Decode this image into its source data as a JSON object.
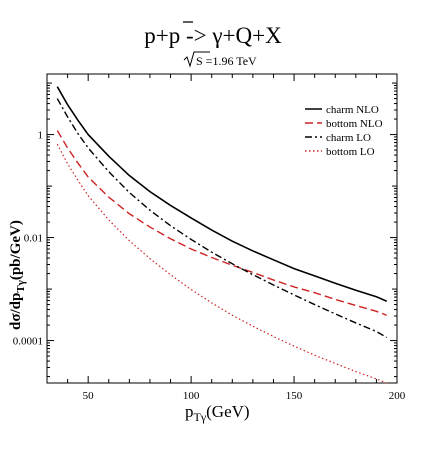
{
  "chart_data": {
    "type": "line",
    "title": "p+p -> γ+Q+X",
    "title_overbar_char": "p",
    "subtitle": "S =1.96 TeV",
    "xlabel_main": "p",
    "xlabel_sub": "Tγ",
    "xlabel_unit": "(GeV)",
    "ylabel": "dσ/dp(pb/GeV)",
    "ylabel_main": "dσ/dp",
    "ylabel_sub": "Tγ",
    "ylabel_unit": "(pb/GeV)",
    "x_scale": "linear",
    "y_scale": "log",
    "xlim": [
      30,
      200
    ],
    "ylim": [
      1.5e-05,
      15
    ],
    "x_ticks": [
      {
        "value": 50,
        "label": "50"
      },
      {
        "value": 100,
        "label": "100"
      },
      {
        "value": 150,
        "label": "150"
      },
      {
        "value": 200,
        "label": "200"
      }
    ],
    "y_ticks": [
      {
        "value": 1,
        "label": "1"
      },
      {
        "value": 0.01,
        "label": "0.01"
      },
      {
        "value": 0.0001,
        "label": "0.0001"
      }
    ],
    "grid": false,
    "legend_position": "top-right",
    "series": [
      {
        "name": "charm NLO",
        "color": "#000000",
        "dash": "solid",
        "x": [
          35,
          40,
          45,
          50,
          60,
          70,
          80,
          90,
          100,
          110,
          120,
          130,
          140,
          150,
          160,
          170,
          180,
          190,
          195
        ],
        "y": [
          8.5,
          3.8,
          1.9,
          1.0,
          0.38,
          0.16,
          0.078,
          0.042,
          0.024,
          0.014,
          0.0085,
          0.0055,
          0.0037,
          0.0025,
          0.0018,
          0.0013,
          0.00095,
          0.00071,
          0.00058
        ]
      },
      {
        "name": "bottom NLO",
        "color": "#cc2222",
        "dash": "dashed",
        "x": [
          35,
          40,
          45,
          50,
          60,
          70,
          80,
          90,
          100,
          110,
          120,
          130,
          140,
          150,
          160,
          170,
          180,
          190,
          195
        ],
        "y": [
          1.2,
          0.55,
          0.28,
          0.15,
          0.061,
          0.029,
          0.016,
          0.0095,
          0.006,
          0.0041,
          0.0029,
          0.0021,
          0.0015,
          0.0011,
          0.00085,
          0.00063,
          0.00048,
          0.00037,
          0.00031
        ]
      },
      {
        "name": "charm LO",
        "color": "#000000",
        "dash": "dashdot",
        "x": [
          35,
          40,
          45,
          50,
          60,
          70,
          80,
          90,
          100,
          110,
          120,
          130,
          140,
          150,
          160,
          170,
          180,
          190,
          195
        ],
        "y": [
          5.0,
          2.2,
          1.05,
          0.55,
          0.19,
          0.075,
          0.034,
          0.017,
          0.0092,
          0.0052,
          0.0031,
          0.0019,
          0.0012,
          0.00077,
          0.0005,
          0.00033,
          0.00022,
          0.00015,
          0.000115
        ]
      },
      {
        "name": "bottom LO",
        "color": "#cc2222",
        "dash": "dotted",
        "x": [
          35,
          40,
          45,
          50,
          60,
          70,
          80,
          90,
          100,
          110,
          120,
          130,
          140,
          150,
          160,
          170,
          180,
          190,
          195
        ],
        "y": [
          0.65,
          0.27,
          0.13,
          0.065,
          0.022,
          0.0087,
          0.0039,
          0.0019,
          0.00098,
          0.00054,
          0.00031,
          0.00019,
          0.00012,
          7.8e-05,
          5.2e-05,
          3.6e-05,
          2.5e-05,
          1.8e-05,
          1.5e-05
        ]
      }
    ]
  }
}
